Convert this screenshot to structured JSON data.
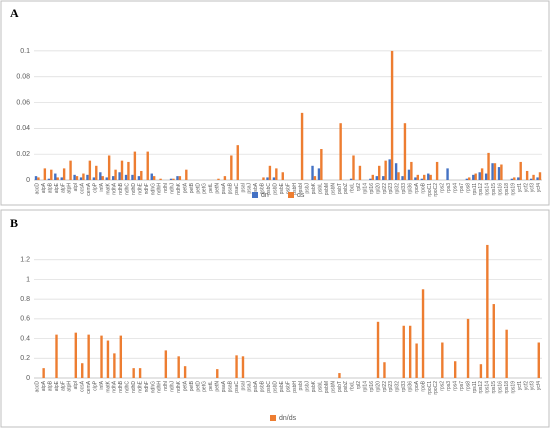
{
  "chart_data": [
    {
      "type": "bar",
      "panel_label": "A",
      "categories": [
        "accD",
        "atpA",
        "atpB",
        "atpE",
        "atpF",
        "atpH",
        "atpI",
        "ccsA",
        "cemA",
        "clpP",
        "infA",
        "matK",
        "ndhA",
        "ndhB",
        "ndhC",
        "ndhD",
        "ndhE",
        "ndhF",
        "ndhG",
        "ndhH",
        "ndhI",
        "ndhJ",
        "ndhK",
        "petA",
        "petB",
        "petD",
        "petG",
        "petL",
        "petN",
        "psaA",
        "psaB",
        "psaC",
        "psaI",
        "psaJ",
        "psbA",
        "psbB",
        "psbC",
        "psbD",
        "psbE",
        "psbF",
        "psbH",
        "psbI",
        "psbJ",
        "psbK",
        "psbL",
        "psbM",
        "psbN",
        "psbT",
        "psbZ",
        "rbcL",
        "rpl2",
        "rpl14",
        "rpl16",
        "rpl20",
        "rpl22",
        "rpl23",
        "rpl32",
        "rpl33",
        "rpl36",
        "rpoA",
        "rpoB",
        "rpoC1",
        "rpoC2",
        "rps2",
        "rps3",
        "rps4",
        "rps7",
        "rps8",
        "rps11",
        "rps12",
        "rps14",
        "rps15",
        "rps16",
        "rps18",
        "rps19",
        "ycf1",
        "ycf2",
        "ycf3",
        "ycf4"
      ],
      "series": [
        {
          "name": "dn",
          "color": "#4472c4",
          "values": [
            0.003,
            0,
            0.001,
            0.005,
            0.002,
            0,
            0.004,
            0.002,
            0.004,
            0.002,
            0.006,
            0.002,
            0.003,
            0.006,
            0.004,
            0.004,
            0.003,
            0,
            0.005,
            0,
            0,
            0.001,
            0.003,
            0,
            0,
            0,
            0,
            0,
            0,
            0,
            0,
            0,
            0,
            0,
            0,
            0,
            0.002,
            0.002,
            0,
            0,
            0,
            0,
            0,
            0.011,
            0.009,
            0,
            0,
            0,
            0,
            0.001,
            0,
            0,
            0.001,
            0.003,
            0.003,
            0.016,
            0.013,
            0.003,
            0.008,
            0.002,
            0.001,
            0.005,
            0,
            0,
            0.009,
            0,
            0,
            0.001,
            0.004,
            0.006,
            0.005,
            0.013,
            0.01,
            0,
            0.001,
            0.002,
            0,
            0.001,
            0.002
          ]
        },
        {
          "name": "ds",
          "color": "#ed7d31",
          "values": [
            0.002,
            0.009,
            0.008,
            0.002,
            0.009,
            0.015,
            0.003,
            0.005,
            0.015,
            0.011,
            0.003,
            0.019,
            0.008,
            0.015,
            0.014,
            0.022,
            0.007,
            0.022,
            0.003,
            0.001,
            0,
            0.001,
            0.003,
            0.008,
            0,
            0,
            0,
            0,
            0.001,
            0.003,
            0.019,
            0.027,
            0,
            0,
            0,
            0.002,
            0.011,
            0.009,
            0.006,
            0,
            0,
            0.052,
            0,
            0.003,
            0.024,
            0,
            0,
            0.044,
            0,
            0.019,
            0.011,
            0,
            0.004,
            0.011,
            0.015,
            0.1,
            0.006,
            0.044,
            0.014,
            0.004,
            0.004,
            0.004,
            0.014,
            0,
            0,
            0,
            0,
            0.002,
            0.005,
            0.009,
            0.021,
            0.013,
            0.012,
            0,
            0.002,
            0.014,
            0.007,
            0.004,
            0.006
          ]
        }
      ],
      "ylim": [
        0,
        0.11
      ],
      "yticks": [
        0,
        0.02,
        0.04,
        0.06,
        0.08,
        0.1
      ],
      "grid": true,
      "legend": "bottom"
    },
    {
      "type": "bar",
      "panel_label": "B",
      "categories": [
        "accD",
        "atpA",
        "atpB",
        "atpE",
        "atpF",
        "atpH",
        "atpI",
        "ccsA",
        "cemA",
        "clpP",
        "infA",
        "matK",
        "ndhA",
        "ndhB",
        "ndhC",
        "ndhD",
        "ndhE",
        "ndhF",
        "ndhG",
        "ndhH",
        "ndhI",
        "ndhJ",
        "ndhK",
        "petA",
        "petB",
        "petD",
        "petG",
        "petL",
        "petN",
        "psaA",
        "psaB",
        "psaC",
        "psaI",
        "psaJ",
        "psbA",
        "psbB",
        "psbC",
        "psbD",
        "psbE",
        "psbF",
        "psbH",
        "psbI",
        "psbJ",
        "psbK",
        "psbL",
        "psbM",
        "psbN",
        "psbT",
        "psbZ",
        "rbcL",
        "rpl2",
        "rpl14",
        "rpl16",
        "rpl20",
        "rpl22",
        "rpl23",
        "rpl32",
        "rpl33",
        "rpl36",
        "rpoA",
        "rpoB",
        "rpoC1",
        "rpoC2",
        "rps2",
        "rps3",
        "rps4",
        "rps7",
        "rps8",
        "rps11",
        "rps12",
        "rps14",
        "rps15",
        "rps16",
        "rps18",
        "rps19",
        "ycf1",
        "ycf2",
        "ycf3",
        "ycf4"
      ],
      "series": [
        {
          "name": "dn/ds",
          "color": "#ed7d31",
          "values": [
            0,
            0.1,
            0,
            0.44,
            0,
            0,
            0.46,
            0.15,
            0.44,
            0,
            0.43,
            0.38,
            0.25,
            0.43,
            0,
            0.1,
            0.1,
            0,
            0,
            0,
            0.28,
            0,
            0.22,
            0.12,
            0,
            0,
            0,
            0,
            0.09,
            0,
            0,
            0.23,
            0.22,
            0,
            0,
            0,
            0,
            0,
            0,
            0,
            0,
            0,
            0,
            0,
            0,
            0,
            0,
            0.05,
            0,
            0,
            0,
            0,
            0,
            0.57,
            0.16,
            0,
            0,
            0.53,
            0.53,
            0.35,
            0.9,
            0,
            0,
            0.36,
            0,
            0.17,
            0,
            0.6,
            0,
            0.14,
            1.35,
            0.75,
            0,
            0.49,
            0,
            0,
            0,
            0,
            0.36
          ]
        }
      ],
      "ylim": [
        0,
        1.4
      ],
      "yticks": [
        0,
        0.2,
        0.4,
        0.6,
        0.8,
        1,
        1.2
      ],
      "grid": true,
      "legend": "bottom"
    }
  ]
}
